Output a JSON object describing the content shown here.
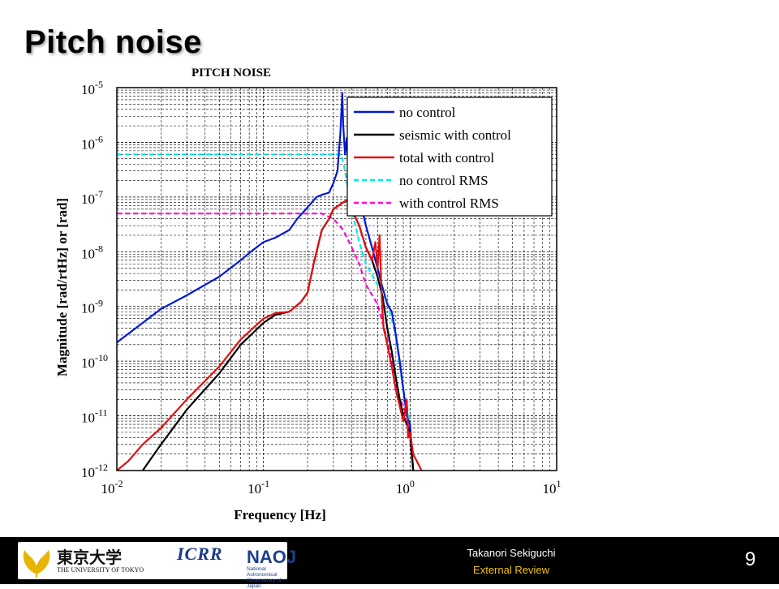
{
  "slide": {
    "title": "Pitch noise"
  },
  "footer": {
    "presenter": "Takanori Sekiguchi",
    "event": "External Review",
    "page_number": "9",
    "logos": {
      "utokyo_kanji": "東京大学",
      "utokyo_english": "THE UNIVERSITY OF TOKYO",
      "icrr": "ICRR",
      "naoj": "NAOJ",
      "naoj_sub": "National Astronomical Observatory of Japan"
    }
  },
  "chart_data": {
    "type": "line",
    "title": "PITCH NOISE",
    "xlabel": "Frequency [Hz]",
    "ylabel": "Magnitude [rad/rtHz] or [rad]",
    "xscale": "log",
    "yscale": "log",
    "xlim": [
      0.01,
      10
    ],
    "ylim": [
      1e-12,
      1e-05
    ],
    "x_tick_labels": [
      {
        "base": "10",
        "exp": "-2",
        "value": 0.01
      },
      {
        "base": "10",
        "exp": "-1",
        "value": 0.1
      },
      {
        "base": "10",
        "exp": "0",
        "value": 1
      },
      {
        "base": "10",
        "exp": "1",
        "value": 10
      }
    ],
    "y_tick_labels": [
      {
        "base": "10",
        "exp": "-5",
        "value": 1e-05
      },
      {
        "base": "10",
        "exp": "-6",
        "value": 1e-06
      },
      {
        "base": "10",
        "exp": "-7",
        "value": 1e-07
      },
      {
        "base": "10",
        "exp": "-8",
        "value": 1e-08
      },
      {
        "base": "10",
        "exp": "-9",
        "value": 1e-09
      },
      {
        "base": "10",
        "exp": "-10",
        "value": 1e-10
      },
      {
        "base": "10",
        "exp": "-11",
        "value": 1e-11
      },
      {
        "base": "10",
        "exp": "-12",
        "value": 1e-12
      }
    ],
    "grid": true,
    "legend_position": "top-right",
    "series": [
      {
        "name": "no control",
        "color": "#0018d6",
        "dash": "solid",
        "points": [
          [
            0.01,
            2.2e-10
          ],
          [
            0.015,
            5e-10
          ],
          [
            0.02,
            9e-10
          ],
          [
            0.03,
            1.6e-09
          ],
          [
            0.05,
            3.5e-09
          ],
          [
            0.07,
            7e-09
          ],
          [
            0.08,
            9.5e-09
          ],
          [
            0.1,
            1.5e-08
          ],
          [
            0.12,
            1.8e-08
          ],
          [
            0.15,
            2.5e-08
          ],
          [
            0.17,
            4e-08
          ],
          [
            0.2,
            6.5e-08
          ],
          [
            0.23,
            1e-07
          ],
          [
            0.25,
            1.1e-07
          ],
          [
            0.28,
            1.2e-07
          ],
          [
            0.3,
            1.8e-07
          ],
          [
            0.32,
            3e-07
          ],
          [
            0.335,
            1.5e-06
          ],
          [
            0.345,
            8e-06
          ],
          [
            0.35,
            2e-06
          ],
          [
            0.36,
            6e-07
          ],
          [
            0.37,
            1.2e-06
          ],
          [
            0.38,
            3e-07
          ],
          [
            0.4,
            8e-07
          ],
          [
            0.42,
            4e-07
          ],
          [
            0.45,
            1e-07
          ],
          [
            0.5,
            3e-08
          ],
          [
            0.55,
            1.2e-08
          ],
          [
            0.6,
            5e-09
          ],
          [
            0.65,
            2.2e-09
          ],
          [
            0.7,
            1.1e-09
          ],
          [
            0.75,
            8e-10
          ],
          [
            0.8,
            3e-10
          ],
          [
            0.85,
            1e-10
          ],
          [
            0.9,
            3e-11
          ],
          [
            0.95,
            1e-11
          ],
          [
            1.0,
            7e-12
          ],
          [
            1.05,
            1e-12
          ]
        ]
      },
      {
        "name": "seismic with control",
        "color": "#000000",
        "dash": "solid",
        "points": [
          [
            0.015,
            1e-12
          ],
          [
            0.02,
            3e-12
          ],
          [
            0.03,
            1.3e-11
          ],
          [
            0.05,
            6e-11
          ],
          [
            0.07,
            2e-10
          ],
          [
            0.1,
            5e-10
          ],
          [
            0.12,
            7e-10
          ],
          [
            0.15,
            8e-10
          ],
          [
            0.18,
            1.2e-09
          ],
          [
            0.2,
            1.8e-09
          ],
          [
            0.22,
            6e-09
          ],
          [
            0.25,
            2.5e-08
          ],
          [
            0.28,
            4e-08
          ],
          [
            0.3,
            6e-08
          ],
          [
            0.35,
            8e-08
          ],
          [
            0.38,
            9e-08
          ],
          [
            0.4,
            6e-08
          ],
          [
            0.45,
            3e-08
          ],
          [
            0.5,
            1.2e-08
          ],
          [
            0.55,
            7e-09
          ],
          [
            0.6,
            3.5e-09
          ],
          [
            0.65,
            1.5e-09
          ],
          [
            0.7,
            4e-10
          ],
          [
            0.75,
            1.5e-10
          ],
          [
            0.8,
            5e-11
          ],
          [
            0.85,
            2e-11
          ],
          [
            0.9,
            1e-11
          ],
          [
            1.0,
            5e-12
          ],
          [
            1.05,
            1e-12
          ]
        ]
      },
      {
        "name": "total with control",
        "color": "#e01010",
        "dash": "solid",
        "points": [
          [
            0.01,
            1e-12
          ],
          [
            0.012,
            1.5e-12
          ],
          [
            0.015,
            3e-12
          ],
          [
            0.02,
            6e-12
          ],
          [
            0.03,
            2e-11
          ],
          [
            0.05,
            8e-11
          ],
          [
            0.07,
            2.5e-10
          ],
          [
            0.1,
            6e-10
          ],
          [
            0.12,
            7.5e-10
          ],
          [
            0.15,
            8e-10
          ],
          [
            0.18,
            1.2e-09
          ],
          [
            0.2,
            1.8e-09
          ],
          [
            0.22,
            6e-09
          ],
          [
            0.25,
            2.5e-08
          ],
          [
            0.28,
            4e-08
          ],
          [
            0.3,
            6e-08
          ],
          [
            0.35,
            8e-08
          ],
          [
            0.38,
            9e-08
          ],
          [
            0.4,
            6e-08
          ],
          [
            0.45,
            3e-08
          ],
          [
            0.5,
            1.2e-08
          ],
          [
            0.55,
            7e-09
          ],
          [
            0.58,
            1.5e-08
          ],
          [
            0.6,
            5e-09
          ],
          [
            0.62,
            2e-08
          ],
          [
            0.64,
            1.5e-09
          ],
          [
            0.66,
            4e-10
          ],
          [
            0.7,
            2e-10
          ],
          [
            0.75,
            8e-11
          ],
          [
            0.8,
            3e-11
          ],
          [
            0.85,
            1.5e-11
          ],
          [
            0.9,
            8e-12
          ],
          [
            0.95,
            2e-11
          ],
          [
            0.97,
            4e-12
          ],
          [
            1.0,
            5e-12
          ],
          [
            1.05,
            2e-12
          ],
          [
            1.2,
            1e-12
          ]
        ]
      },
      {
        "name": "no control RMS",
        "color": "#00e8f0",
        "dash": "dashed",
        "points": [
          [
            0.01,
            6e-07
          ],
          [
            0.3,
            6e-07
          ],
          [
            0.34,
            6e-07
          ],
          [
            0.36,
            3e-07
          ],
          [
            0.38,
            1.2e-07
          ],
          [
            0.4,
            6e-08
          ],
          [
            0.45,
            1.5e-08
          ],
          [
            0.5,
            6e-09
          ],
          [
            0.6,
            2.5e-09
          ],
          [
            0.7,
            1.2e-09
          ],
          [
            0.8,
            3e-10
          ],
          [
            0.85,
            8e-11
          ],
          [
            0.9,
            3e-11
          ],
          [
            0.95,
            1.5e-11
          ],
          [
            1.0,
            8e-12
          ],
          [
            1.05,
            1e-12
          ]
        ]
      },
      {
        "name": "with control RMS",
        "color": "#ff00d4",
        "dash": "dashed",
        "points": [
          [
            0.01,
            5e-08
          ],
          [
            0.2,
            5e-08
          ],
          [
            0.25,
            5e-08
          ],
          [
            0.3,
            4e-08
          ],
          [
            0.35,
            2.5e-08
          ],
          [
            0.4,
            1.2e-08
          ],
          [
            0.45,
            6e-09
          ],
          [
            0.5,
            2.5e-09
          ],
          [
            0.6,
            1.1e-09
          ],
          [
            0.7,
            2.5e-10
          ],
          [
            0.75,
            1e-10
          ],
          [
            0.8,
            4e-11
          ],
          [
            0.85,
            2e-11
          ],
          [
            0.9,
            1.5e-11
          ],
          [
            0.95,
            1e-11
          ],
          [
            1.0,
            4e-12
          ],
          [
            1.05,
            1e-12
          ]
        ]
      }
    ]
  }
}
